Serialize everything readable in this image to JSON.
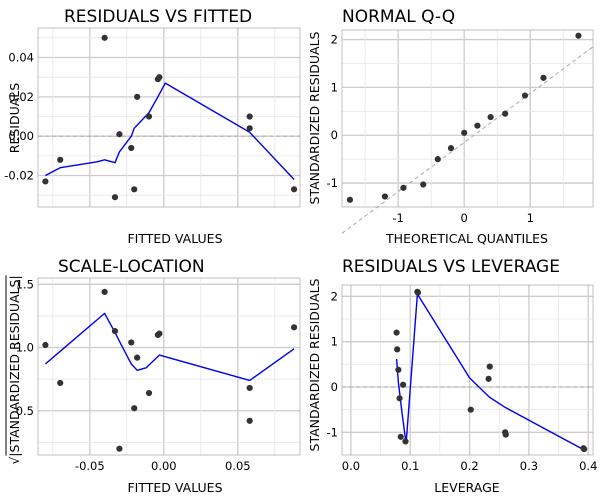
{
  "figure": {
    "background": "#ffffff"
  },
  "style": {
    "point_color": "#333333",
    "smoother_color": "#0000ee",
    "reference_line_color": "#aaaaaa",
    "grid_color": "#cccccc"
  },
  "chart_data": [
    {
      "type": "scatter",
      "title": "RESIDUALS VS FITTED",
      "xlabel": "FITTED VALUES",
      "ylabel": "RESIDUALS",
      "xlim": [
        -0.085,
        0.092
      ],
      "ylim": [
        -0.036,
        0.055
      ],
      "xticks": [
        -0.05,
        0.0,
        0.05
      ],
      "xtick_labels": [
        "",
        "",
        ""
      ],
      "yticks": [
        -0.02,
        0.0,
        0.02,
        0.04
      ],
      "ytick_labels": [
        "-0.02",
        "0.00",
        "0.02",
        "0.04"
      ],
      "xminor": [
        -0.075,
        -0.025,
        0.025,
        0.075
      ],
      "yminor": [
        -0.03,
        -0.01,
        0.01,
        0.03,
        0.05
      ],
      "grid": true,
      "reference_line": {
        "kind": "hline",
        "value": 0,
        "style": "dashed"
      },
      "points": {
        "x": [
          -0.08,
          -0.07,
          -0.04,
          -0.033,
          -0.03,
          -0.022,
          -0.02,
          -0.018,
          -0.01,
          -0.004,
          -0.003,
          0.058,
          0.058,
          0.088
        ],
        "y": [
          -0.023,
          -0.012,
          0.05,
          -0.031,
          0.001,
          -0.006,
          -0.027,
          0.02,
          0.01,
          0.029,
          0.03,
          0.01,
          0.004,
          -0.027
        ]
      },
      "smoother": {
        "x": [
          -0.08,
          -0.07,
          -0.045,
          -0.04,
          -0.033,
          -0.03,
          -0.022,
          -0.02,
          -0.01,
          -0.004,
          0.001,
          0.058,
          0.088
        ],
        "y": [
          -0.02,
          -0.016,
          -0.013,
          -0.012,
          -0.0135,
          -0.008,
          0.0,
          0.004,
          0.012,
          0.02,
          0.027,
          0.002,
          -0.022
        ]
      }
    },
    {
      "type": "scatter",
      "title": "NORMAL Q-Q",
      "xlabel": "THEORETICAL QUANTILES",
      "ylabel": "STANDARDIZED RESIDUALS",
      "xlim": [
        -1.85,
        1.95
      ],
      "ylim": [
        -1.5,
        2.2
      ],
      "xticks": [
        -1,
        0,
        1
      ],
      "xtick_labels": [
        "-1",
        "0",
        "1"
      ],
      "yticks": [
        -1,
        0,
        1,
        2
      ],
      "ytick_labels": [
        "-1",
        "0",
        "1",
        "2"
      ],
      "xminor": [
        -1.5,
        -0.5,
        0.5,
        1.5
      ],
      "yminor": [
        -0.5,
        0.5,
        1.5
      ],
      "grid": true,
      "reference_line": {
        "kind": "line",
        "x": [
          -1.85,
          1.95
        ],
        "y": [
          -2.05,
          1.85
        ],
        "style": "dashed"
      },
      "points": {
        "x": [
          -1.73,
          -1.2,
          -0.92,
          -0.62,
          -0.4,
          -0.2,
          0.0,
          0.2,
          0.4,
          0.62,
          0.92,
          1.2,
          1.73
        ],
        "y": [
          -1.35,
          -1.28,
          -1.1,
          -1.03,
          -0.5,
          -0.27,
          0.05,
          0.2,
          0.38,
          0.45,
          0.83,
          1.2,
          2.08
        ]
      }
    },
    {
      "type": "scatter",
      "title": "SCALE-LOCATION",
      "xlabel": "FITTED VALUES",
      "ylabel": "√|STANDARDIZED RESIDUALS|",
      "xlim": [
        -0.085,
        0.092
      ],
      "ylim": [
        0.15,
        1.55
      ],
      "xticks": [
        -0.05,
        0.0,
        0.05
      ],
      "xtick_labels": [
        "-0.05",
        "0.00",
        "0.05"
      ],
      "yticks": [
        0.5,
        1.0,
        1.5
      ],
      "ytick_labels": [
        "0.5",
        "1.0",
        "1.5"
      ],
      "xminor": [
        -0.075,
        -0.025,
        0.025,
        0.075
      ],
      "yminor": [
        0.25,
        0.75,
        1.25
      ],
      "grid": true,
      "points": {
        "x": [
          -0.08,
          -0.07,
          -0.04,
          -0.033,
          -0.03,
          -0.022,
          -0.02,
          -0.018,
          -0.01,
          -0.004,
          -0.003,
          0.058,
          0.058,
          0.088
        ],
        "y": [
          1.02,
          0.72,
          1.44,
          1.13,
          0.2,
          1.04,
          0.52,
          0.92,
          0.64,
          1.1,
          1.11,
          0.68,
          0.42,
          1.16
        ]
      },
      "smoother": {
        "x": [
          -0.08,
          -0.07,
          -0.04,
          -0.033,
          -0.03,
          -0.026,
          -0.022,
          -0.018,
          -0.012,
          -0.003,
          0.058,
          0.088
        ],
        "y": [
          0.87,
          0.97,
          1.27,
          1.12,
          1.05,
          0.96,
          0.87,
          0.82,
          0.84,
          0.94,
          0.74,
          0.99
        ]
      }
    },
    {
      "type": "scatter",
      "title": "RESIDUALS VS LEVERAGE",
      "xlabel": "LEVERAGE",
      "ylabel": "STANDARDIZED RESIDUALS",
      "xlim": [
        -0.015,
        0.408
      ],
      "ylim": [
        -1.5,
        2.25
      ],
      "xticks": [
        0.0,
        0.1,
        0.2,
        0.3,
        0.4
      ],
      "xtick_labels": [
        "0.0",
        "0.1",
        "0.2",
        "0.3",
        "0.4"
      ],
      "yticks": [
        -1,
        0,
        1,
        2
      ],
      "ytick_labels": [
        "-1",
        "0",
        "1",
        "2"
      ],
      "xminor": [
        0.05,
        0.15,
        0.25,
        0.35
      ],
      "yminor": [
        -0.5,
        0.5,
        1.5
      ],
      "grid": true,
      "reference_line": {
        "kind": "hline",
        "value": 0,
        "style": "dashed"
      },
      "points": {
        "x": [
          0.077,
          0.078,
          0.08,
          0.082,
          0.084,
          0.088,
          0.092,
          0.112,
          0.113,
          0.202,
          0.232,
          0.234,
          0.26,
          0.261,
          0.392,
          0.393
        ],
        "y": [
          1.2,
          0.83,
          0.38,
          -0.25,
          -1.1,
          0.05,
          -1.2,
          2.1,
          2.08,
          -0.5,
          0.18,
          0.45,
          -1.0,
          -1.05,
          -1.35,
          -1.37
        ]
      },
      "smoother": {
        "x": [
          0.077,
          0.08,
          0.086,
          0.093,
          0.112,
          0.2,
          0.233,
          0.26,
          0.392
        ],
        "y": [
          0.62,
          0.1,
          -0.55,
          -1.25,
          2.05,
          0.2,
          -0.22,
          -0.45,
          -1.38
        ]
      }
    }
  ]
}
